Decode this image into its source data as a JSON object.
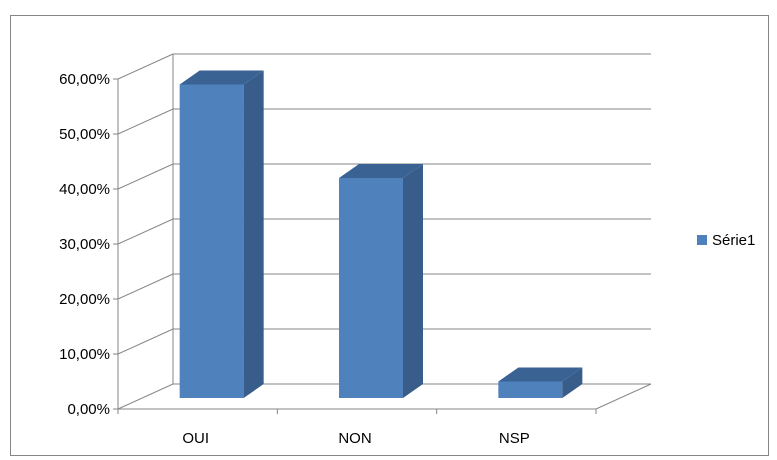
{
  "chart_data": {
    "type": "bar",
    "categories": [
      "OUI",
      "NON",
      "NSP"
    ],
    "series": [
      {
        "name": "Série1",
        "values": [
          0.57,
          0.4,
          0.03
        ]
      }
    ],
    "ylim": [
      0,
      0.6
    ],
    "y_ticks": [
      "0,00%",
      "10,00%",
      "20,00%",
      "30,00%",
      "40,00%",
      "50,00%",
      "60,00%"
    ],
    "grid": true,
    "legend_position": "right",
    "style": "3d-column",
    "colors": {
      "front": "#4F81BD",
      "side": "#385D8A",
      "top": "#3A6293",
      "grid": "#868686",
      "border": "#868686"
    }
  }
}
